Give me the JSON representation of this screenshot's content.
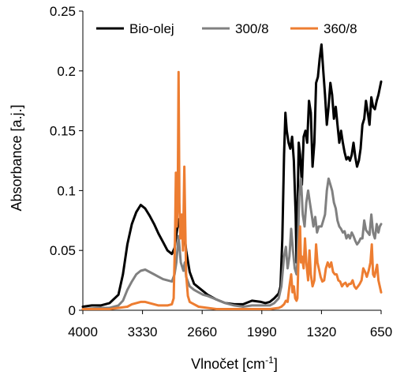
{
  "chart_data": {
    "type": "line",
    "ylabel": "Absorbance [a.j.]",
    "xlabel_main": "Vlnočet [cm",
    "xlabel_sup": "-1",
    "xlabel_end": "]",
    "x_reversed": true,
    "xlim": [
      650,
      4000
    ],
    "ylim": [
      0,
      0.25
    ],
    "xticks": [
      4000,
      3330,
      2660,
      1990,
      1320,
      650
    ],
    "yticks": [
      0,
      0.05,
      0.1,
      0.15,
      0.2,
      0.25
    ],
    "ytick_labels": [
      "0",
      "0.05",
      "0.1",
      "0.15",
      "0.2",
      "0.25"
    ],
    "grid": false,
    "legend_position": "top",
    "series": [
      {
        "name": "Bio-olej",
        "color": "#000000",
        "points": [
          [
            4000,
            0.003
          ],
          [
            3900,
            0.004
          ],
          [
            3800,
            0.004
          ],
          [
            3700,
            0.006
          ],
          [
            3600,
            0.013
          ],
          [
            3550,
            0.03
          ],
          [
            3500,
            0.055
          ],
          [
            3450,
            0.072
          ],
          [
            3400,
            0.082
          ],
          [
            3350,
            0.088
          ],
          [
            3300,
            0.085
          ],
          [
            3250,
            0.079
          ],
          [
            3200,
            0.072
          ],
          [
            3150,
            0.064
          ],
          [
            3100,
            0.057
          ],
          [
            3050,
            0.05
          ],
          [
            3000,
            0.047
          ],
          [
            2970,
            0.052
          ],
          [
            2950,
            0.063
          ],
          [
            2925,
            0.076
          ],
          [
            2900,
            0.066
          ],
          [
            2870,
            0.057
          ],
          [
            2855,
            0.061
          ],
          [
            2840,
            0.05
          ],
          [
            2800,
            0.032
          ],
          [
            2750,
            0.022
          ],
          [
            2700,
            0.019
          ],
          [
            2650,
            0.016
          ],
          [
            2600,
            0.013
          ],
          [
            2500,
            0.009
          ],
          [
            2400,
            0.006
          ],
          [
            2300,
            0.005
          ],
          [
            2200,
            0.005
          ],
          [
            2100,
            0.008
          ],
          [
            2000,
            0.007
          ],
          [
            1950,
            0.006
          ],
          [
            1900,
            0.007
          ],
          [
            1850,
            0.01
          ],
          [
            1800,
            0.014
          ],
          [
            1780,
            0.02
          ],
          [
            1760,
            0.06
          ],
          [
            1740,
            0.13
          ],
          [
            1725,
            0.165
          ],
          [
            1710,
            0.15
          ],
          [
            1690,
            0.14
          ],
          [
            1670,
            0.135
          ],
          [
            1650,
            0.145
          ],
          [
            1630,
            0.125
          ],
          [
            1610,
            0.08
          ],
          [
            1600,
            0.04
          ],
          [
            1590,
            0.08
          ],
          [
            1575,
            0.14
          ],
          [
            1560,
            0.13
          ],
          [
            1540,
            0.105
          ],
          [
            1520,
            0.145
          ],
          [
            1500,
            0.15
          ],
          [
            1480,
            0.14
          ],
          [
            1460,
            0.175
          ],
          [
            1440,
            0.165
          ],
          [
            1420,
            0.12
          ],
          [
            1400,
            0.14
          ],
          [
            1380,
            0.19
          ],
          [
            1360,
            0.195
          ],
          [
            1340,
            0.21
          ],
          [
            1320,
            0.222
          ],
          [
            1300,
            0.2
          ],
          [
            1280,
            0.18
          ],
          [
            1260,
            0.155
          ],
          [
            1240,
            0.17
          ],
          [
            1220,
            0.19
          ],
          [
            1200,
            0.18
          ],
          [
            1180,
            0.16
          ],
          [
            1160,
            0.17
          ],
          [
            1140,
            0.155
          ],
          [
            1120,
            0.14
          ],
          [
            1100,
            0.15
          ],
          [
            1080,
            0.14
          ],
          [
            1060,
            0.132
          ],
          [
            1040,
            0.126
          ],
          [
            1020,
            0.128
          ],
          [
            1000,
            0.125
          ],
          [
            980,
            0.13
          ],
          [
            960,
            0.14
          ],
          [
            940,
            0.128
          ],
          [
            920,
            0.12
          ],
          [
            900,
            0.125
          ],
          [
            880,
            0.135
          ],
          [
            860,
            0.155
          ],
          [
            840,
            0.16
          ],
          [
            820,
            0.175
          ],
          [
            800,
            0.165
          ],
          [
            780,
            0.155
          ],
          [
            760,
            0.178
          ],
          [
            740,
            0.17
          ],
          [
            720,
            0.168
          ],
          [
            700,
            0.175
          ],
          [
            680,
            0.18
          ],
          [
            650,
            0.191
          ]
        ]
      },
      {
        "name": "300/8",
        "color": "#808080",
        "points": [
          [
            4000,
            0.001
          ],
          [
            3800,
            0.002
          ],
          [
            3700,
            0.002
          ],
          [
            3600,
            0.004
          ],
          [
            3550,
            0.008
          ],
          [
            3500,
            0.017
          ],
          [
            3450,
            0.024
          ],
          [
            3400,
            0.03
          ],
          [
            3350,
            0.033
          ],
          [
            3300,
            0.034
          ],
          [
            3250,
            0.032
          ],
          [
            3200,
            0.03
          ],
          [
            3150,
            0.028
          ],
          [
            3100,
            0.026
          ],
          [
            3050,
            0.025
          ],
          [
            3000,
            0.024
          ],
          [
            2970,
            0.03
          ],
          [
            2950,
            0.04
          ],
          [
            2925,
            0.062
          ],
          [
            2900,
            0.04
          ],
          [
            2870,
            0.033
          ],
          [
            2855,
            0.04
          ],
          [
            2840,
            0.028
          ],
          [
            2800,
            0.02
          ],
          [
            2750,
            0.017
          ],
          [
            2700,
            0.015
          ],
          [
            2650,
            0.013
          ],
          [
            2600,
            0.012
          ],
          [
            2500,
            0.009
          ],
          [
            2400,
            0.006
          ],
          [
            2300,
            0.004
          ],
          [
            2200,
            0.003
          ],
          [
            2100,
            0.004
          ],
          [
            2000,
            0.004
          ],
          [
            1900,
            0.004
          ],
          [
            1850,
            0.006
          ],
          [
            1800,
            0.01
          ],
          [
            1770,
            0.02
          ],
          [
            1740,
            0.045
          ],
          [
            1720,
            0.053
          ],
          [
            1700,
            0.035
          ],
          [
            1680,
            0.045
          ],
          [
            1660,
            0.068
          ],
          [
            1640,
            0.05
          ],
          [
            1620,
            0.035
          ],
          [
            1600,
            0.03
          ],
          [
            1590,
            0.04
          ],
          [
            1570,
            0.095
          ],
          [
            1550,
            0.11
          ],
          [
            1530,
            0.08
          ],
          [
            1510,
            0.07
          ],
          [
            1490,
            0.09
          ],
          [
            1470,
            0.1
          ],
          [
            1450,
            0.09
          ],
          [
            1430,
            0.08
          ],
          [
            1410,
            0.07
          ],
          [
            1390,
            0.078
          ],
          [
            1370,
            0.065
          ],
          [
            1350,
            0.07
          ],
          [
            1320,
            0.07
          ],
          [
            1300,
            0.075
          ],
          [
            1280,
            0.08
          ],
          [
            1260,
            0.1
          ],
          [
            1240,
            0.11
          ],
          [
            1220,
            0.105
          ],
          [
            1200,
            0.1
          ],
          [
            1180,
            0.09
          ],
          [
            1160,
            0.085
          ],
          [
            1140,
            0.075
          ],
          [
            1120,
            0.07
          ],
          [
            1100,
            0.068
          ],
          [
            1080,
            0.065
          ],
          [
            1060,
            0.066
          ],
          [
            1040,
            0.06
          ],
          [
            1020,
            0.063
          ],
          [
            1000,
            0.06
          ],
          [
            980,
            0.065
          ],
          [
            960,
            0.062
          ],
          [
            940,
            0.058
          ],
          [
            920,
            0.055
          ],
          [
            900,
            0.057
          ],
          [
            880,
            0.06
          ],
          [
            860,
            0.06
          ],
          [
            840,
            0.075
          ],
          [
            820,
            0.067
          ],
          [
            800,
            0.065
          ],
          [
            780,
            0.063
          ],
          [
            760,
            0.08
          ],
          [
            740,
            0.065
          ],
          [
            720,
            0.06
          ],
          [
            700,
            0.072
          ],
          [
            680,
            0.065
          ],
          [
            665,
            0.07
          ],
          [
            650,
            0.072
          ]
        ]
      },
      {
        "name": "360/8",
        "color": "#ED7D31",
        "points": [
          [
            4000,
            0.001
          ],
          [
            3700,
            0.001
          ],
          [
            3600,
            0.002
          ],
          [
            3500,
            0.003
          ],
          [
            3450,
            0.005
          ],
          [
            3400,
            0.006
          ],
          [
            3350,
            0.007
          ],
          [
            3300,
            0.007
          ],
          [
            3250,
            0.006
          ],
          [
            3200,
            0.005
          ],
          [
            3150,
            0.004
          ],
          [
            3100,
            0.004
          ],
          [
            3050,
            0.004
          ],
          [
            3000,
            0.005
          ],
          [
            2980,
            0.01
          ],
          [
            2965,
            0.06
          ],
          [
            2955,
            0.115
          ],
          [
            2945,
            0.07
          ],
          [
            2935,
            0.09
          ],
          [
            2925,
            0.199
          ],
          [
            2915,
            0.09
          ],
          [
            2905,
            0.06
          ],
          [
            2890,
            0.08
          ],
          [
            2875,
            0.05
          ],
          [
            2860,
            0.12
          ],
          [
            2850,
            0.07
          ],
          [
            2840,
            0.03
          ],
          [
            2820,
            0.012
          ],
          [
            2800,
            0.007
          ],
          [
            2750,
            0.005
          ],
          [
            2700,
            0.003
          ],
          [
            2600,
            0.002
          ],
          [
            2500,
            0.001
          ],
          [
            2400,
            0.001
          ],
          [
            2200,
            0.001
          ],
          [
            2000,
            0.001
          ],
          [
            1900,
            0.001
          ],
          [
            1800,
            0.002
          ],
          [
            1770,
            0.003
          ],
          [
            1740,
            0.005
          ],
          [
            1720,
            0.008
          ],
          [
            1700,
            0.007
          ],
          [
            1680,
            0.02
          ],
          [
            1660,
            0.03
          ],
          [
            1645,
            0.015
          ],
          [
            1630,
            0.02
          ],
          [
            1615,
            0.01
          ],
          [
            1600,
            0.008
          ],
          [
            1590,
            0.01
          ],
          [
            1575,
            0.05
          ],
          [
            1560,
            0.07
          ],
          [
            1550,
            0.04
          ],
          [
            1540,
            0.045
          ],
          [
            1520,
            0.035
          ],
          [
            1505,
            0.06
          ],
          [
            1490,
            0.04
          ],
          [
            1470,
            0.025
          ],
          [
            1455,
            0.05
          ],
          [
            1440,
            0.03
          ],
          [
            1420,
            0.02
          ],
          [
            1400,
            0.025
          ],
          [
            1380,
            0.055
          ],
          [
            1365,
            0.04
          ],
          [
            1350,
            0.035
          ],
          [
            1330,
            0.028
          ],
          [
            1310,
            0.024
          ],
          [
            1290,
            0.025
          ],
          [
            1270,
            0.035
          ],
          [
            1250,
            0.04
          ],
          [
            1230,
            0.036
          ],
          [
            1210,
            0.04
          ],
          [
            1190,
            0.032
          ],
          [
            1170,
            0.03
          ],
          [
            1150,
            0.03
          ],
          [
            1130,
            0.025
          ],
          [
            1110,
            0.024
          ],
          [
            1090,
            0.02
          ],
          [
            1070,
            0.022
          ],
          [
            1050,
            0.023
          ],
          [
            1030,
            0.02
          ],
          [
            1010,
            0.022
          ],
          [
            990,
            0.022
          ],
          [
            970,
            0.025
          ],
          [
            950,
            0.02
          ],
          [
            930,
            0.018
          ],
          [
            910,
            0.02
          ],
          [
            890,
            0.022
          ],
          [
            870,
            0.025
          ],
          [
            850,
            0.035
          ],
          [
            830,
            0.032
          ],
          [
            810,
            0.028
          ],
          [
            790,
            0.033
          ],
          [
            770,
            0.04
          ],
          [
            755,
            0.055
          ],
          [
            740,
            0.03
          ],
          [
            725,
            0.028
          ],
          [
            710,
            0.033
          ],
          [
            695,
            0.038
          ],
          [
            680,
            0.025
          ],
          [
            665,
            0.02
          ],
          [
            650,
            0.015
          ]
        ]
      }
    ]
  }
}
